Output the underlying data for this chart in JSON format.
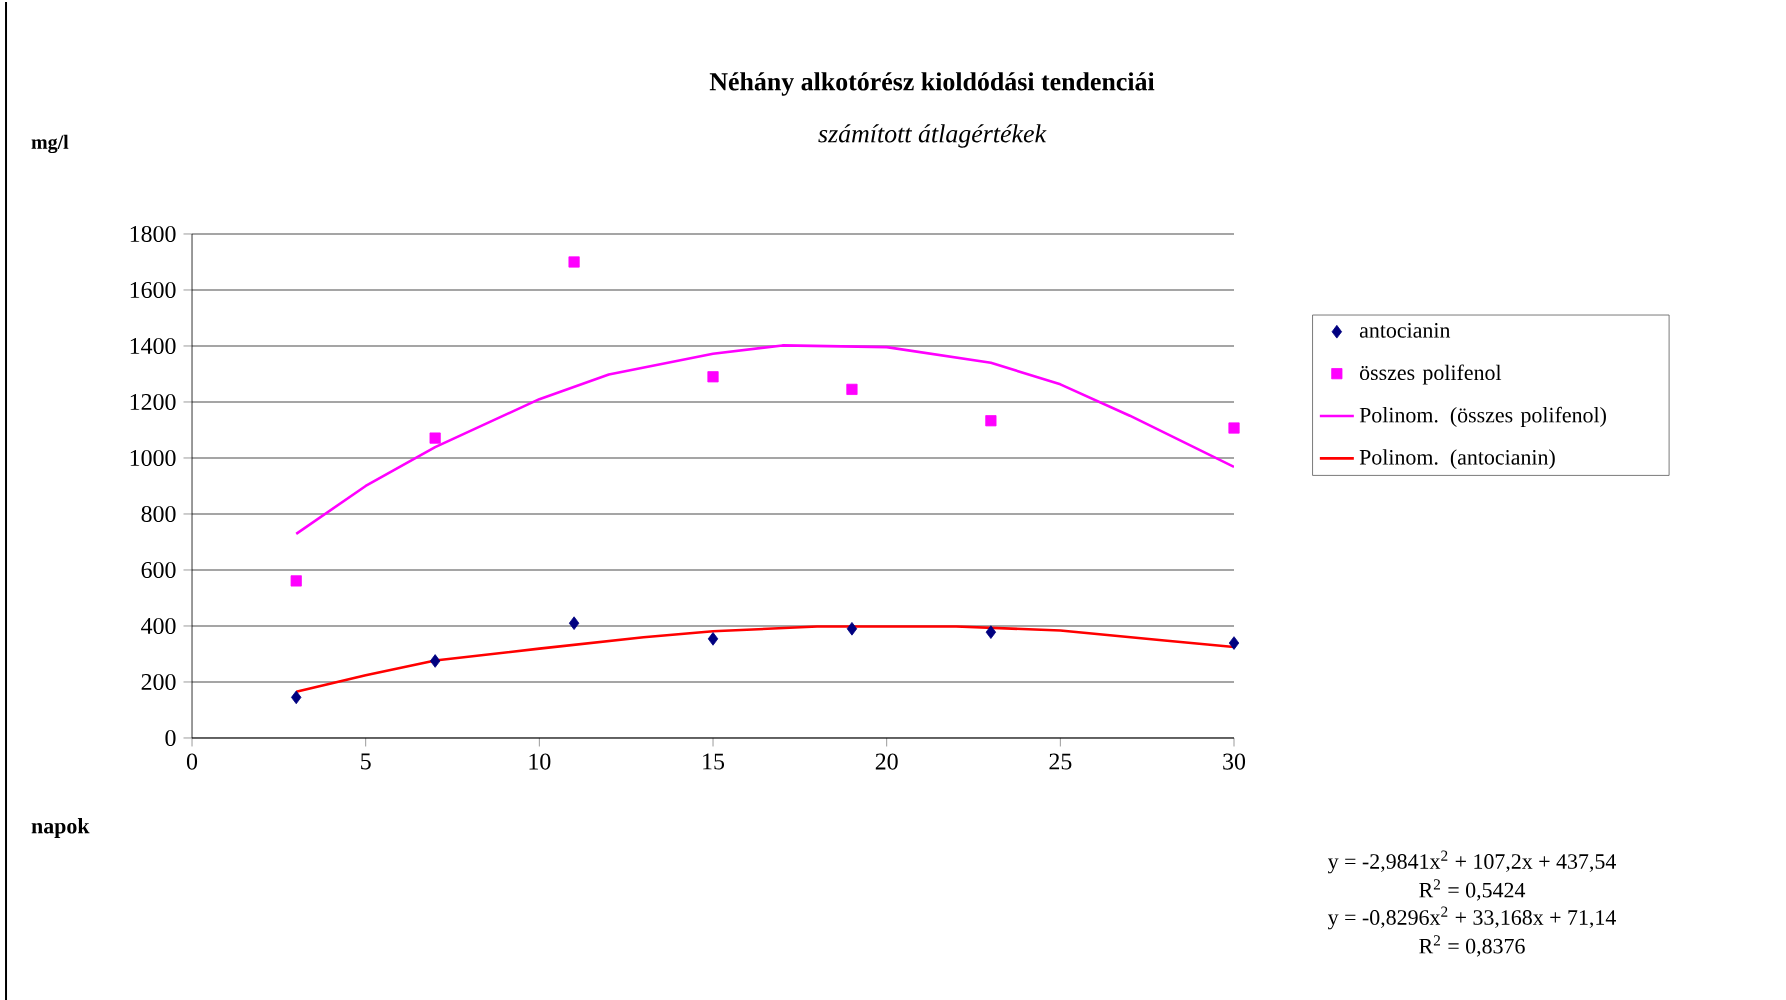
{
  "chart_data": {
    "type": "scatter",
    "title": "Néhány alkotórész kioldódási tendenciái",
    "subtitle": "számított átlagértékek",
    "xlabel": "napok",
    "ylabel": "mg/l",
    "xlim": [
      0,
      30
    ],
    "xticks": [
      0,
      5,
      10,
      15,
      20,
      25,
      30
    ],
    "ylim": [
      0,
      1800
    ],
    "yticks": [
      0,
      200,
      400,
      600,
      800,
      1000,
      1200,
      1400,
      1600,
      1800
    ],
    "grid": "y",
    "legend": "right",
    "series": [
      {
        "name": "antocianin",
        "marker": "diamond",
        "color": "#000080",
        "x": [
          3,
          7,
          11,
          15,
          19,
          23,
          30
        ],
        "values": [
          145,
          275,
          410,
          354,
          390,
          378,
          339
        ]
      },
      {
        "name": "összes polifenol",
        "marker": "square",
        "color": "#ff00ff",
        "x": [
          3,
          7,
          11,
          15,
          19,
          23,
          30
        ],
        "values": [
          561,
          1071,
          1700,
          1290,
          1245,
          1133,
          1107
        ]
      },
      {
        "name": "Polinom. (összes polifenol)",
        "type": "line",
        "marker": "none",
        "line_style": "solid",
        "color": "#ff00ff",
        "x": [
          3,
          5,
          7,
          10,
          12,
          15,
          17,
          20,
          23,
          25,
          27,
          30
        ],
        "values": [
          729,
          900,
          1039,
          1210,
          1298,
          1372,
          1402,
          1396,
          1340,
          1263,
          1151,
          968
        ]
      },
      {
        "name": "Polinom. (antocianin)",
        "type": "line",
        "marker": "none",
        "line_style": "solid",
        "color": "#ff0000",
        "x": [
          3,
          5,
          7,
          10,
          13,
          15,
          18,
          22,
          25,
          28,
          30
        ],
        "values": [
          165,
          224,
          277,
          319,
          360,
          381,
          398,
          398,
          384,
          348,
          325
        ]
      }
    ],
    "annotations": [
      "y = -2,9841x$^{2}$ + 107,2x + 437,54",
      "R$^{2}$ = 0,5424",
      "y = -0,8296x$^{2}$ + 33,168x + 71,14",
      "R$^{2}$ = 0,8376"
    ]
  }
}
